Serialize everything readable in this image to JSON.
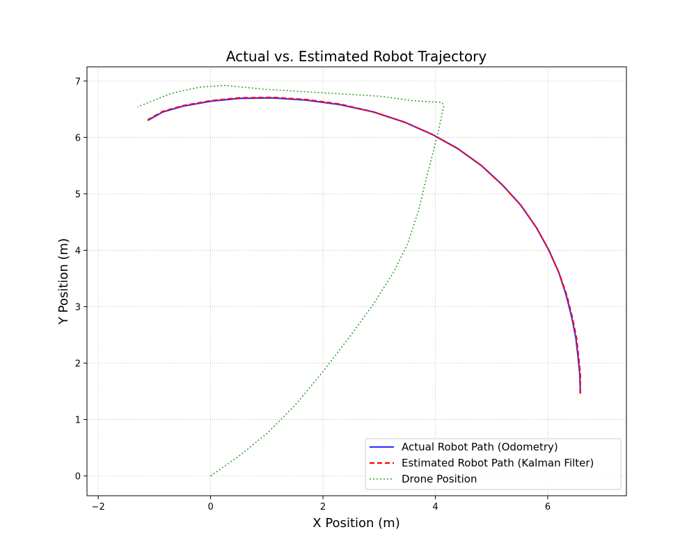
{
  "chart_data": {
    "type": "line",
    "title": "Actual vs. Estimated Robot Trajectory",
    "xlabel": "X Position (m)",
    "ylabel": "Y Position (m)",
    "xlim": [
      -2.2,
      7.4
    ],
    "ylim": [
      -0.35,
      7.25
    ],
    "xticks": [
      -2,
      0,
      2,
      4,
      6
    ],
    "yticks": [
      0,
      1,
      2,
      3,
      4,
      5,
      6,
      7
    ],
    "grid": true,
    "legend_position": "lower-right",
    "series": [
      {
        "name": "Actual Robot Path (Odometry)",
        "color": "#3333ff",
        "style": "solid",
        "points": [
          [
            6.58,
            1.46
          ],
          [
            6.57,
            1.8
          ],
          [
            6.54,
            2.1
          ],
          [
            6.5,
            2.45
          ],
          [
            6.43,
            2.8
          ],
          [
            6.33,
            3.2
          ],
          [
            6.2,
            3.6
          ],
          [
            6.02,
            4.0
          ],
          [
            5.8,
            4.4
          ],
          [
            5.52,
            4.8
          ],
          [
            5.2,
            5.15
          ],
          [
            4.82,
            5.5
          ],
          [
            4.4,
            5.8
          ],
          [
            3.95,
            6.05
          ],
          [
            3.45,
            6.27
          ],
          [
            2.9,
            6.45
          ],
          [
            2.3,
            6.58
          ],
          [
            1.7,
            6.66
          ],
          [
            1.1,
            6.7
          ],
          [
            0.5,
            6.69
          ],
          [
            0.0,
            6.64
          ],
          [
            -0.5,
            6.55
          ],
          [
            -0.85,
            6.45
          ],
          [
            -1.12,
            6.3
          ]
        ]
      },
      {
        "name": "Estimated Robot Path (Kalman Filter)",
        "color": "#ff0000",
        "style": "dashed",
        "points": [
          [
            6.58,
            1.46
          ],
          [
            6.58,
            1.8
          ],
          [
            6.55,
            2.1
          ],
          [
            6.51,
            2.45
          ],
          [
            6.44,
            2.8
          ],
          [
            6.34,
            3.2
          ],
          [
            6.2,
            3.6
          ],
          [
            6.02,
            4.0
          ],
          [
            5.8,
            4.4
          ],
          [
            5.52,
            4.8
          ],
          [
            5.2,
            5.15
          ],
          [
            4.82,
            5.5
          ],
          [
            4.4,
            5.8
          ],
          [
            3.95,
            6.05
          ],
          [
            3.45,
            6.27
          ],
          [
            2.9,
            6.45
          ],
          [
            2.3,
            6.59
          ],
          [
            1.7,
            6.67
          ],
          [
            1.1,
            6.71
          ],
          [
            0.5,
            6.7
          ],
          [
            0.0,
            6.65
          ],
          [
            -0.5,
            6.56
          ],
          [
            -0.85,
            6.46
          ],
          [
            -1.12,
            6.31
          ]
        ]
      },
      {
        "name": "Drone Position",
        "color": "#2ca02c",
        "style": "dotted",
        "points": [
          [
            0.0,
            0.0
          ],
          [
            0.5,
            0.35
          ],
          [
            1.0,
            0.75
          ],
          [
            1.5,
            1.25
          ],
          [
            2.0,
            1.85
          ],
          [
            2.5,
            2.5
          ],
          [
            2.9,
            3.05
          ],
          [
            3.25,
            3.6
          ],
          [
            3.5,
            4.1
          ],
          [
            3.7,
            4.7
          ],
          [
            3.82,
            5.2
          ],
          [
            3.95,
            5.7
          ],
          [
            4.05,
            6.1
          ],
          [
            4.15,
            6.55
          ],
          [
            4.12,
            6.62
          ],
          [
            3.6,
            6.65
          ],
          [
            3.0,
            6.73
          ],
          [
            2.0,
            6.79
          ],
          [
            1.0,
            6.85
          ],
          [
            0.25,
            6.92
          ],
          [
            -0.2,
            6.89
          ],
          [
            -0.7,
            6.78
          ],
          [
            -1.3,
            6.54
          ]
        ]
      }
    ]
  }
}
